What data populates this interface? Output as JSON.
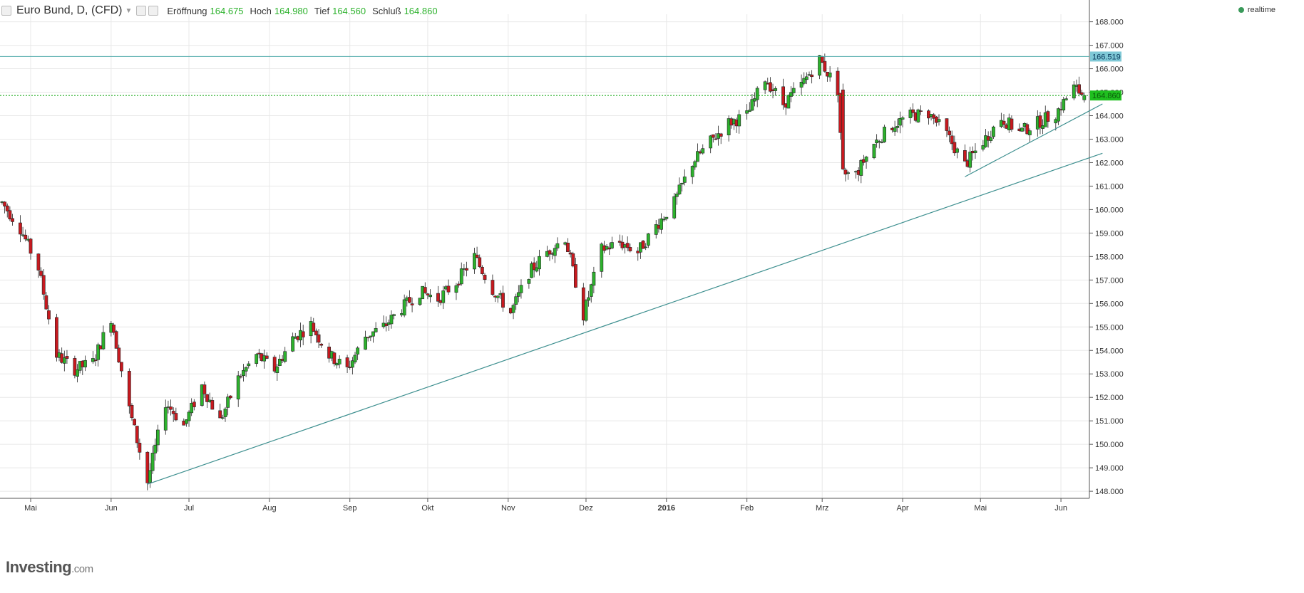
{
  "header": {
    "title": "Euro Bund, D, (CFD)",
    "open_label": "Eröffnung",
    "open": "164.675",
    "high_label": "Hoch",
    "high": "164.980",
    "low_label": "Tief",
    "low": "164.560",
    "close_label": "Schluß",
    "close": "164.860",
    "realtime": "realtime"
  },
  "logo": {
    "brand": "Investing",
    "suffix": ".com"
  },
  "colors": {
    "up": "#2db22d",
    "down": "#c8191f",
    "trendline": "#3d8f8f",
    "hline": "#4aa7a7",
    "price_line": "#00a000",
    "grid": "#e8e8e8"
  },
  "chart_data": {
    "type": "candlestick",
    "ylim": [
      147.7,
      168.2
    ],
    "y_ticks": [
      "148.000",
      "149.000",
      "150.000",
      "151.000",
      "152.000",
      "153.000",
      "154.000",
      "155.000",
      "156.000",
      "157.000",
      "158.000",
      "159.000",
      "160.000",
      "161.000",
      "162.000",
      "163.000",
      "164.000",
      "165.000",
      "166.000",
      "167.000",
      "168.000"
    ],
    "month_labels": [
      {
        "label": "Mai",
        "date": "2015-05-01"
      },
      {
        "label": "Jun",
        "date": "2015-06-01"
      },
      {
        "label": "Jul",
        "date": "2015-07-01"
      },
      {
        "label": "Aug",
        "date": "2015-08-01"
      },
      {
        "label": "Sep",
        "date": "2015-09-01"
      },
      {
        "label": "Okt",
        "date": "2015-10-01"
      },
      {
        "label": "Nov",
        "date": "2015-11-01"
      },
      {
        "label": "Dez",
        "date": "2015-12-01"
      },
      {
        "label": "2016",
        "date": "2016-01-01",
        "bold": true
      },
      {
        "label": "Feb",
        "date": "2016-02-01"
      },
      {
        "label": "Mrz",
        "date": "2016-03-01"
      },
      {
        "label": "Apr",
        "date": "2016-04-01"
      },
      {
        "label": "Mai",
        "date": "2016-05-01"
      },
      {
        "label": "Jun",
        "date": "2016-06-01"
      }
    ],
    "anchors": [
      [
        "2015-04-20",
        160.3
      ],
      [
        "2015-04-27",
        159.2
      ],
      [
        "2015-05-04",
        157.5
      ],
      [
        "2015-05-11",
        153.8
      ],
      [
        "2015-05-18",
        153.2
      ],
      [
        "2015-05-25",
        153.5
      ],
      [
        "2015-06-01",
        155.4
      ],
      [
        "2015-06-08",
        151.5
      ],
      [
        "2015-06-15",
        148.4
      ],
      [
        "2015-06-22",
        151.8
      ],
      [
        "2015-06-29",
        150.8
      ],
      [
        "2015-07-06",
        152.5
      ],
      [
        "2015-07-13",
        151.0
      ],
      [
        "2015-07-20",
        152.8
      ],
      [
        "2015-07-27",
        153.8
      ],
      [
        "2015-08-03",
        153.2
      ],
      [
        "2015-08-10",
        154.5
      ],
      [
        "2015-08-17",
        155.1
      ],
      [
        "2015-08-24",
        153.8
      ],
      [
        "2015-08-31",
        153.2
      ],
      [
        "2015-09-07",
        154.6
      ],
      [
        "2015-09-14",
        155.0
      ],
      [
        "2015-09-21",
        155.8
      ],
      [
        "2015-09-28",
        156.5
      ],
      [
        "2015-10-05",
        156.2
      ],
      [
        "2015-10-12",
        156.9
      ],
      [
        "2015-10-19",
        158.0
      ],
      [
        "2015-10-26",
        156.6
      ],
      [
        "2015-11-02",
        155.6
      ],
      [
        "2015-11-09",
        157.3
      ],
      [
        "2015-11-16",
        158.2
      ],
      [
        "2015-11-23",
        158.8
      ],
      [
        "2015-11-30",
        155.5
      ],
      [
        "2015-12-07",
        158.3
      ],
      [
        "2015-12-14",
        158.6
      ],
      [
        "2015-12-21",
        158.2
      ],
      [
        "2015-12-28",
        159.3
      ],
      [
        "2016-01-04",
        160.3
      ],
      [
        "2016-01-11",
        162.0
      ],
      [
        "2016-01-18",
        162.9
      ],
      [
        "2016-01-25",
        163.7
      ],
      [
        "2016-02-01",
        164.0
      ],
      [
        "2016-02-08",
        165.6
      ],
      [
        "2016-02-15",
        164.5
      ],
      [
        "2016-02-22",
        165.3
      ],
      [
        "2016-02-29",
        166.4
      ],
      [
        "2016-03-07",
        165.1
      ],
      [
        "2016-03-09",
        161.5
      ],
      [
        "2016-03-14",
        161.5
      ],
      [
        "2016-03-21",
        162.8
      ],
      [
        "2016-03-28",
        163.6
      ],
      [
        "2016-04-04",
        164.0
      ],
      [
        "2016-04-11",
        164.1
      ],
      [
        "2016-04-18",
        163.2
      ],
      [
        "2016-04-25",
        161.9
      ],
      [
        "2016-05-02",
        162.9
      ],
      [
        "2016-05-09",
        163.9
      ],
      [
        "2016-05-16",
        163.3
      ],
      [
        "2016-05-23",
        163.7
      ],
      [
        "2016-05-30",
        164.1
      ],
      [
        "2016-06-06",
        165.2
      ],
      [
        "2016-06-10",
        164.86
      ]
    ],
    "last_bar": {
      "open": 164.675,
      "high": 164.98,
      "low": 164.56,
      "close": 164.86
    },
    "hlines": [
      {
        "value": 166.519,
        "label": "166.519",
        "style": "solid"
      },
      {
        "value": 164.86,
        "label": "164.860",
        "style": "dotted"
      }
    ],
    "trendlines": [
      {
        "from": [
          "2015-06-15",
          148.3
        ],
        "to": [
          "2016-06-17",
          162.4
        ]
      },
      {
        "from": [
          "2016-04-25",
          161.4
        ],
        "to": [
          "2016-06-17",
          164.5
        ]
      }
    ]
  }
}
